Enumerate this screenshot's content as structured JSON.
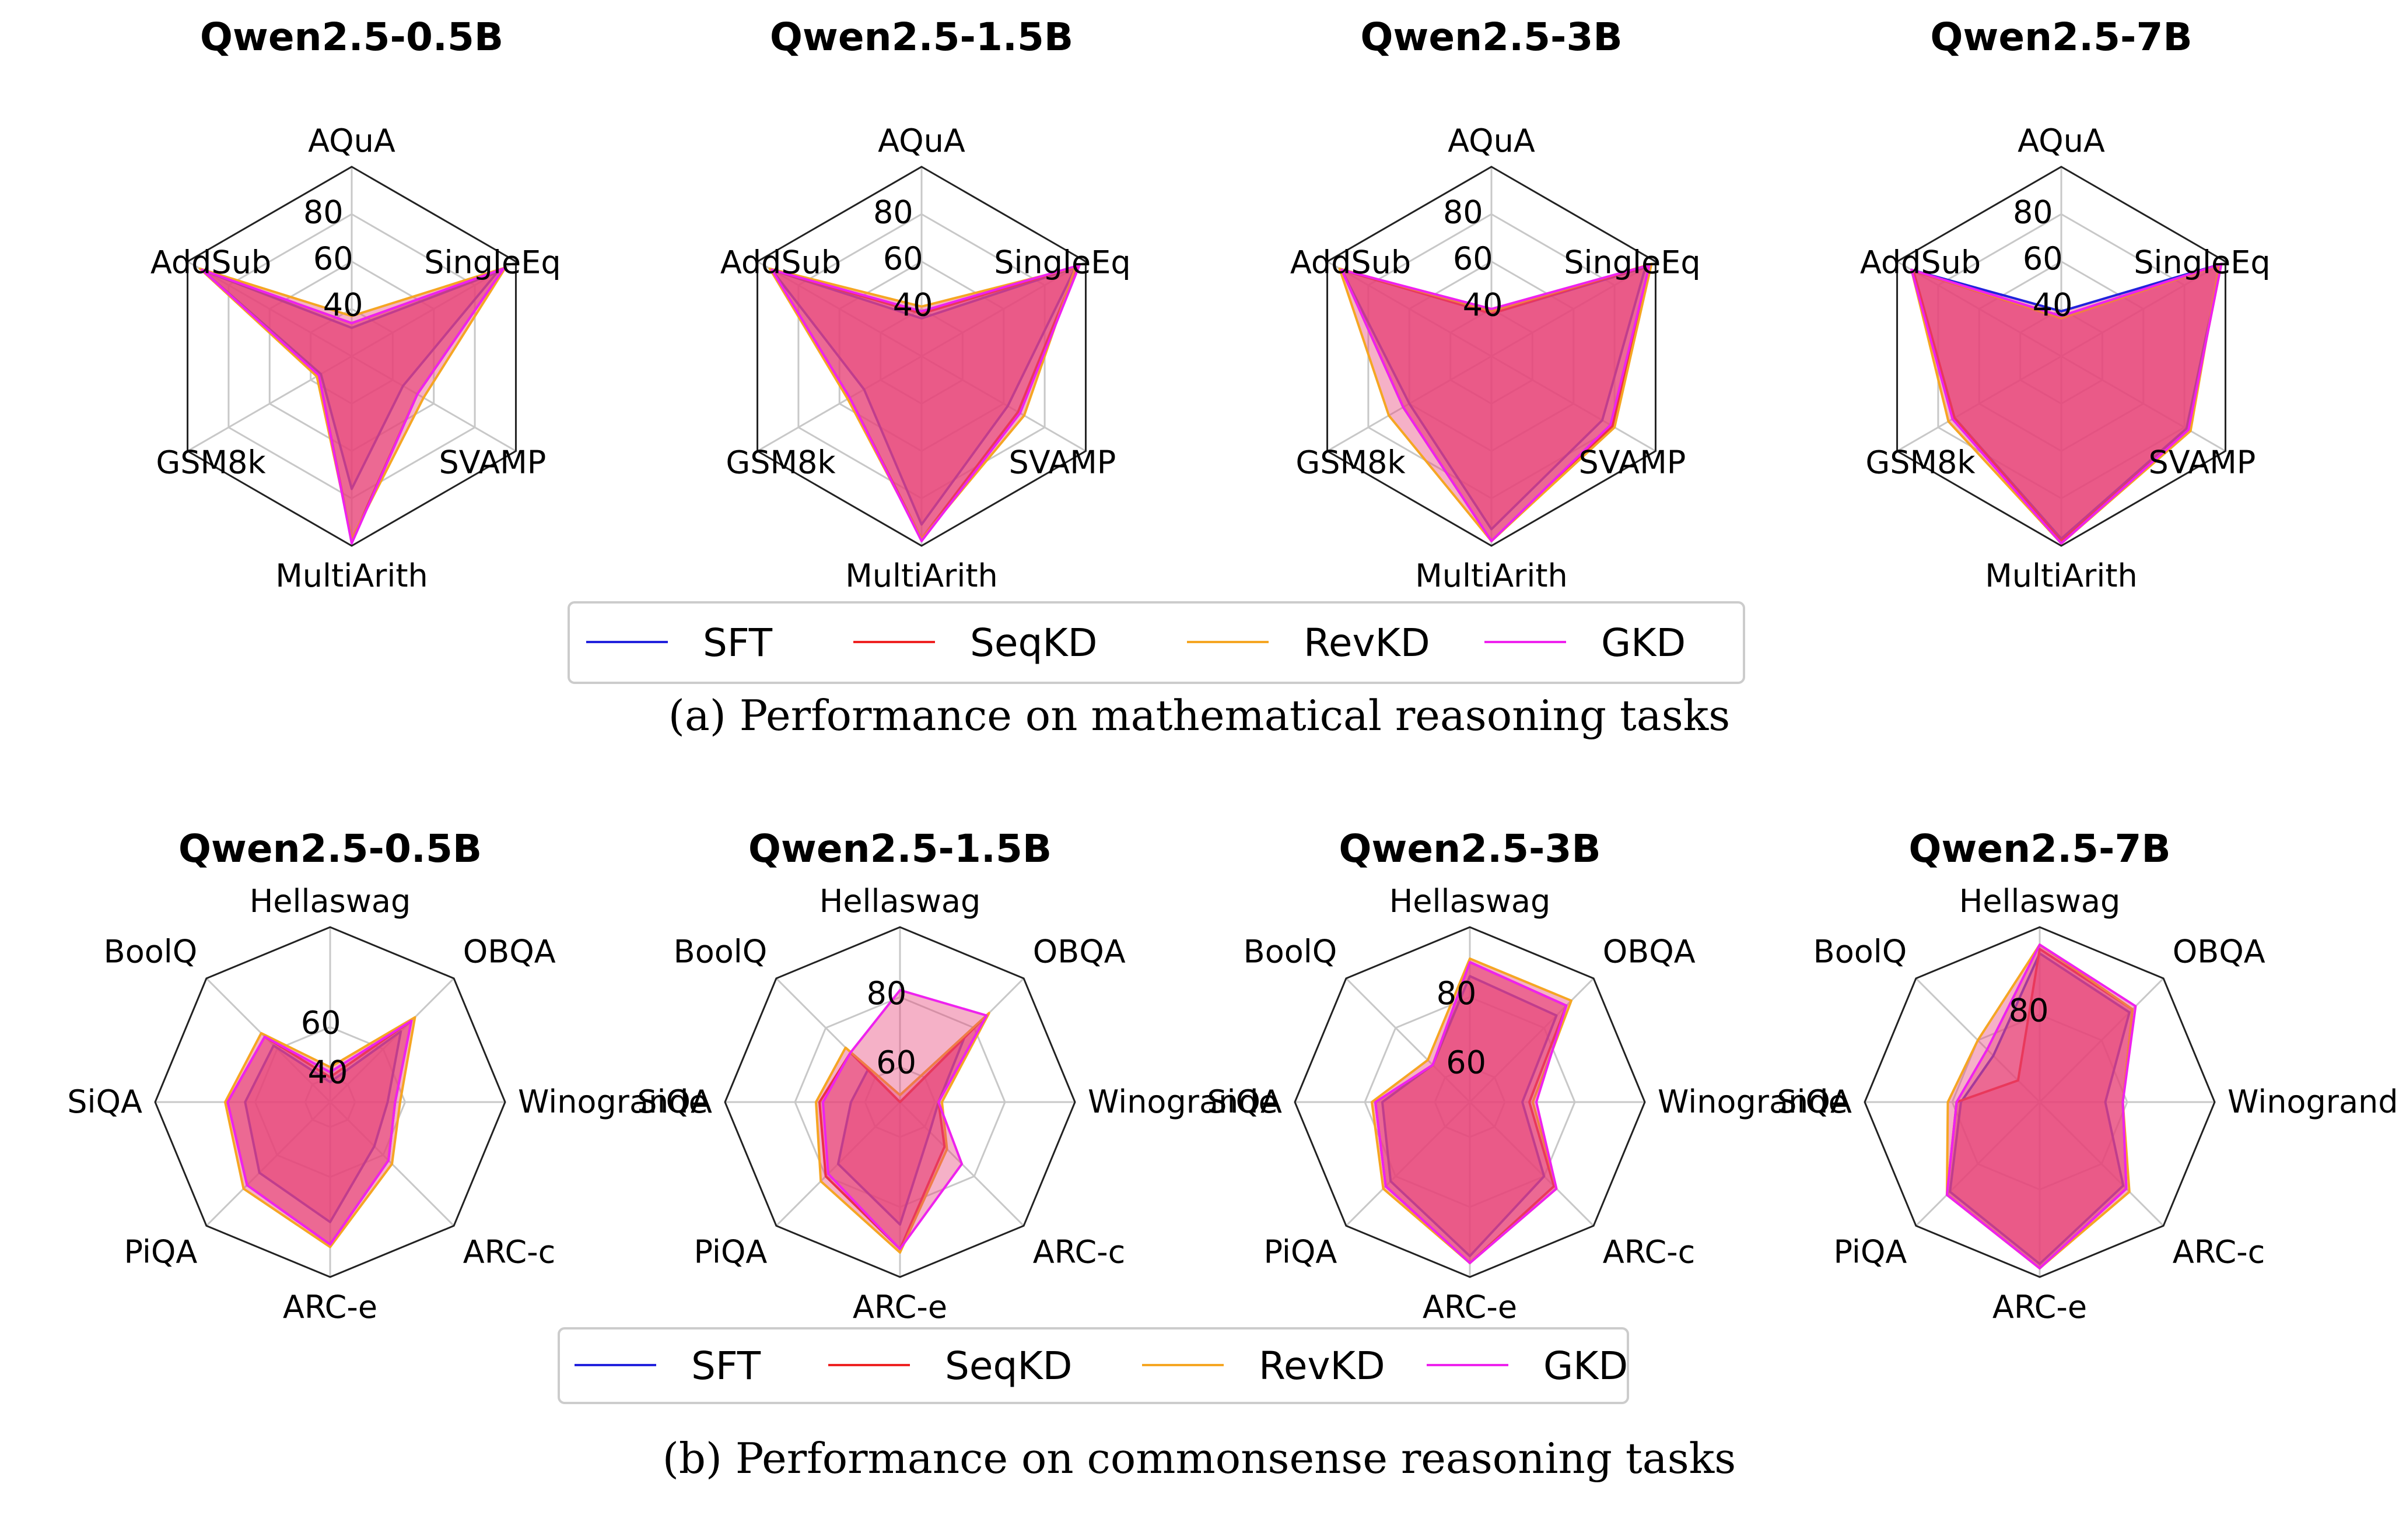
{
  "colors": {
    "SFT": "#2222dd",
    "SeqKD": "#ee2222",
    "RevKD": "#f5a623",
    "GKD": "#ee22ee",
    "fill": "#e8457a"
  },
  "legend": [
    "SFT",
    "SeqKD",
    "RevKD",
    "GKD"
  ],
  "captions": [
    "(a) Performance on mathematical reasoning tasks",
    "(b) Performance on commonsense reasoning tasks"
  ],
  "chart_data": [
    {
      "type": "radar",
      "group": "math",
      "title": "Qwen2.5-0.5B",
      "axes": [
        "AQuA",
        "SingleEq",
        "SVAMP",
        "MultiArith",
        "GSM8k",
        "AddSub"
      ],
      "rlim": [
        20,
        100
      ],
      "ticks": [
        40,
        60,
        80
      ],
      "series": [
        {
          "name": "SFT",
          "values": [
            32,
            91,
            45,
            76,
            35,
            93
          ]
        },
        {
          "name": "SeqKD",
          "values": [
            34,
            94,
            52,
            98,
            36,
            93
          ]
        },
        {
          "name": "RevKD",
          "values": [
            37,
            95,
            55,
            97,
            37,
            94
          ]
        },
        {
          "name": "GKD",
          "values": [
            34,
            94,
            52,
            99,
            36,
            93
          ]
        }
      ]
    },
    {
      "type": "radar",
      "group": "math",
      "title": "Qwen2.5-1.5B",
      "axes": [
        "AQuA",
        "SingleEq",
        "SVAMP",
        "MultiArith",
        "GSM8k",
        "AddSub"
      ],
      "rlim": [
        20,
        100
      ],
      "ticks": [
        40,
        60,
        80
      ],
      "series": [
        {
          "name": "SFT",
          "values": [
            36,
            95,
            62,
            91,
            48,
            93
          ]
        },
        {
          "name": "SeqKD",
          "values": [
            38,
            96,
            67,
            97,
            55,
            93
          ]
        },
        {
          "name": "RevKD",
          "values": [
            41,
            95,
            70,
            97,
            56,
            94
          ]
        },
        {
          "name": "GKD",
          "values": [
            39,
            97,
            68,
            98,
            55,
            93
          ]
        }
      ]
    },
    {
      "type": "radar",
      "group": "math",
      "title": "Qwen2.5-3B",
      "axes": [
        "AQuA",
        "SingleEq",
        "SVAMP",
        "MultiArith",
        "GSM8k",
        "AddSub"
      ],
      "rlim": [
        20,
        100
      ],
      "ticks": [
        40,
        60,
        80
      ],
      "series": [
        {
          "name": "SFT",
          "values": [
            38,
            95,
            74,
            93,
            60,
            93
          ]
        },
        {
          "name": "SeqKD",
          "values": [
            38,
            97,
            79,
            98,
            63,
            93
          ]
        },
        {
          "name": "RevKD",
          "values": [
            39,
            98,
            80,
            98,
            70,
            94
          ]
        },
        {
          "name": "GKD",
          "values": [
            40,
            97,
            78,
            98,
            63,
            93
          ]
        }
      ]
    },
    {
      "type": "radar",
      "group": "math",
      "title": "Qwen2.5-7B",
      "axes": [
        "AQuA",
        "SingleEq",
        "SVAMP",
        "MultiArith",
        "GSM8k",
        "AddSub"
      ],
      "rlim": [
        20,
        100
      ],
      "ticks": [
        40,
        60,
        80
      ],
      "series": [
        {
          "name": "SFT",
          "values": [
            39,
            98,
            81,
            97,
            72,
            93
          ]
        },
        {
          "name": "SeqKD",
          "values": [
            36,
            98,
            82,
            98,
            72,
            92
          ]
        },
        {
          "name": "RevKD",
          "values": [
            36,
            97,
            83,
            99,
            75,
            93
          ]
        },
        {
          "name": "GKD",
          "values": [
            37,
            98,
            82,
            99,
            73,
            93
          ]
        }
      ]
    },
    {
      "type": "radar",
      "group": "commonsense",
      "title": "Qwen2.5-0.5B",
      "axes": [
        "Hellaswag",
        "OBQA",
        "Winogrande",
        "ARC-c",
        "ARC-e",
        "PiQA",
        "SiQA",
        "BoolQ"
      ],
      "rlim": [
        30,
        100
      ],
      "ticks": [
        40,
        60
      ],
      "series": [
        {
          "name": "SFT",
          "values": [
            38,
            70,
            53,
            55,
            78,
            70,
            64,
            62
          ]
        },
        {
          "name": "SeqKD",
          "values": [
            40,
            76,
            56,
            63,
            87,
            77,
            71,
            67
          ]
        },
        {
          "name": "RevKD",
          "values": [
            44,
            78,
            58,
            65,
            88,
            79,
            72,
            69
          ]
        },
        {
          "name": "GKD",
          "values": [
            42,
            76,
            56,
            63,
            87,
            77,
            71,
            67
          ]
        }
      ]
    },
    {
      "type": "radar",
      "group": "commonsense",
      "title": "Qwen2.5-1.5B",
      "axes": [
        "Hellaswag",
        "OBQA",
        "Winogrande",
        "ARC-c",
        "ARC-e",
        "PiQA",
        "SiQA",
        "BoolQ"
      ],
      "rlim": [
        50,
        100
      ],
      "ticks": [
        60,
        80
      ],
      "series": [
        {
          "name": "SFT",
          "values": [
            50,
            76,
            61,
            62,
            85,
            75,
            64,
            63
          ]
        },
        {
          "name": "SeqKD",
          "values": [
            50,
            85,
            61,
            68,
            92,
            80,
            73,
            70
          ]
        },
        {
          "name": "RevKD",
          "values": [
            52,
            86,
            62,
            69,
            93,
            82,
            74,
            72
          ]
        },
        {
          "name": "GKD",
          "values": [
            82,
            85,
            61,
            75,
            92,
            79,
            72,
            70
          ]
        }
      ]
    },
    {
      "type": "radar",
      "group": "commonsense",
      "title": "Qwen2.5-3B",
      "axes": [
        "Hellaswag",
        "OBQA",
        "Winogrande",
        "ARC-c",
        "ARC-e",
        "PiQA",
        "SiQA",
        "BoolQ"
      ],
      "rlim": [
        50,
        100
      ],
      "ticks": [
        60,
        80
      ],
      "series": [
        {
          "name": "SFT",
          "values": [
            86,
            85,
            65,
            80,
            94,
            82,
            75,
            65
          ]
        },
        {
          "name": "SeqKD",
          "values": [
            90,
            89,
            67,
            84,
            96,
            84,
            77,
            65
          ]
        },
        {
          "name": "RevKD",
          "values": [
            91,
            91,
            68,
            85,
            96,
            85,
            78,
            67
          ]
        },
        {
          "name": "GKD",
          "values": [
            90,
            89,
            69,
            85,
            96,
            84,
            77,
            65
          ]
        }
      ]
    },
    {
      "type": "radar",
      "group": "commonsense",
      "title": "Qwen2.5-7B",
      "axes": [
        "Hellaswag",
        "OBQA",
        "Winogrande",
        "ARC-c",
        "ARC-e",
        "PiQA",
        "SiQA",
        "BoolQ"
      ],
      "rlim": [
        60,
        100
      ],
      "ticks": [
        80
      ],
      "series": [
        {
          "name": "SFT",
          "values": [
            94,
            89,
            75,
            87,
            97,
            89,
            78,
            75
          ]
        },
        {
          "name": "SeqKD",
          "values": [
            95,
            90,
            79,
            88,
            98,
            90,
            79,
            67
          ]
        },
        {
          "name": "RevKD",
          "values": [
            96,
            90,
            79,
            89,
            98,
            90,
            81,
            80
          ]
        },
        {
          "name": "GKD",
          "values": [
            96,
            91,
            79,
            88,
            98,
            90,
            79,
            77
          ]
        }
      ]
    }
  ]
}
